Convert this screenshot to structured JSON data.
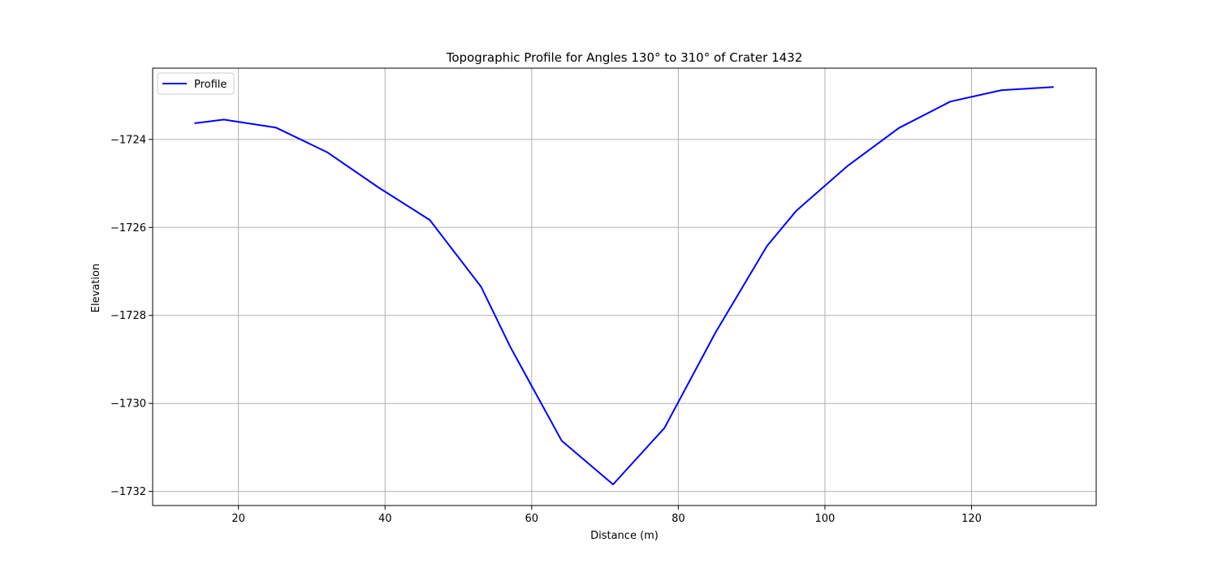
{
  "chart_data": {
    "type": "line",
    "title": "Topographic Profile for Angles 130° to 310° of Crater 1432",
    "xlabel": "Distance (m)",
    "ylabel": "Elevation",
    "xlim": [
      8.3,
      137
    ],
    "ylim": [
      -1732.32,
      -1722.38
    ],
    "x_ticks": [
      20,
      40,
      60,
      80,
      100,
      120
    ],
    "y_ticks": [
      -1732,
      -1730,
      -1728,
      -1726,
      -1724
    ],
    "x_tick_labels": [
      "20",
      "40",
      "60",
      "80",
      "100",
      "120"
    ],
    "y_tick_labels": [
      "−1732",
      "−1730",
      "−1728",
      "−1726",
      "−1724"
    ],
    "grid": true,
    "legend_position": "upper-left",
    "series": [
      {
        "name": "Profile",
        "color": "#0000ff",
        "x": [
          14.1,
          18.0,
          25.1,
          32.1,
          39.1,
          46.1,
          53.1,
          57.1,
          64.1,
          71.1,
          78.1,
          85.1,
          92.1,
          96.1,
          103.1,
          110.1,
          117.1,
          124.1,
          131.1
        ],
        "y": [
          -1723.63,
          -1723.55,
          -1723.73,
          -1724.29,
          -1725.09,
          -1725.83,
          -1727.35,
          -1728.72,
          -1730.85,
          -1731.84,
          -1730.56,
          -1728.38,
          -1726.42,
          -1725.62,
          -1724.6,
          -1723.74,
          -1723.14,
          -1722.88,
          -1722.81
        ]
      }
    ]
  }
}
